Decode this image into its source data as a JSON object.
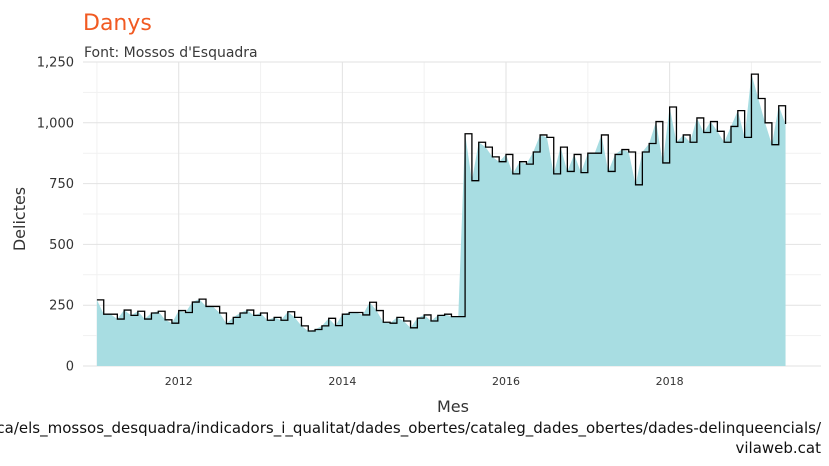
{
  "chart_data": {
    "type": "area",
    "title": "Danys",
    "subtitle": "Font: Mossos d'Esquadra",
    "xlabel": "Mes",
    "ylabel": "Delictes",
    "caption_lines": [
      "https://mossos.gencat.cat/ca/els_mossos_desquadra/indicadors_i_qualitat/dades_obertes/cataleg_dades_obertes/dades-delinqueencials/",
      "vilaweb.cat"
    ],
    "x_ticks": [
      "2012",
      "2014",
      "2016",
      "2018"
    ],
    "y_ticks": [
      "0",
      "250",
      "500",
      "750",
      "1,000",
      "1,250"
    ],
    "xlim": [
      2010.83,
      2019.85
    ],
    "ylim": [
      0,
      1250
    ],
    "grid": true,
    "area_color": "#a8dde2",
    "step_color": "#000000",
    "title_color": "#f15a22",
    "series": [
      {
        "start": "2011-01",
        "values": [
          272,
          213,
          213,
          193,
          230,
          208,
          225,
          193,
          218,
          225,
          190,
          176,
          228,
          220,
          263,
          275,
          245,
          245,
          218,
          174,
          200,
          218,
          230,
          208,
          218,
          188,
          200,
          188,
          223,
          200,
          165,
          144,
          150,
          165,
          196,
          166,
          213,
          220,
          220,
          210,
          262,
          228,
          180,
          176,
          200,
          185,
          157,
          197,
          210,
          185,
          208,
          213,
          203,
          203,
          955,
          762,
          920,
          900,
          860,
          840,
          870,
          790,
          840,
          830,
          880,
          950,
          940,
          790,
          900,
          800,
          870,
          795,
          875,
          875,
          950,
          800,
          870,
          890,
          880,
          745,
          880,
          915,
          1005,
          835,
          1065,
          920,
          950,
          920,
          1020,
          960,
          1005,
          965,
          920,
          985,
          1050,
          940,
          1200,
          1100,
          1000,
          910,
          1070,
          995
        ]
      }
    ]
  }
}
